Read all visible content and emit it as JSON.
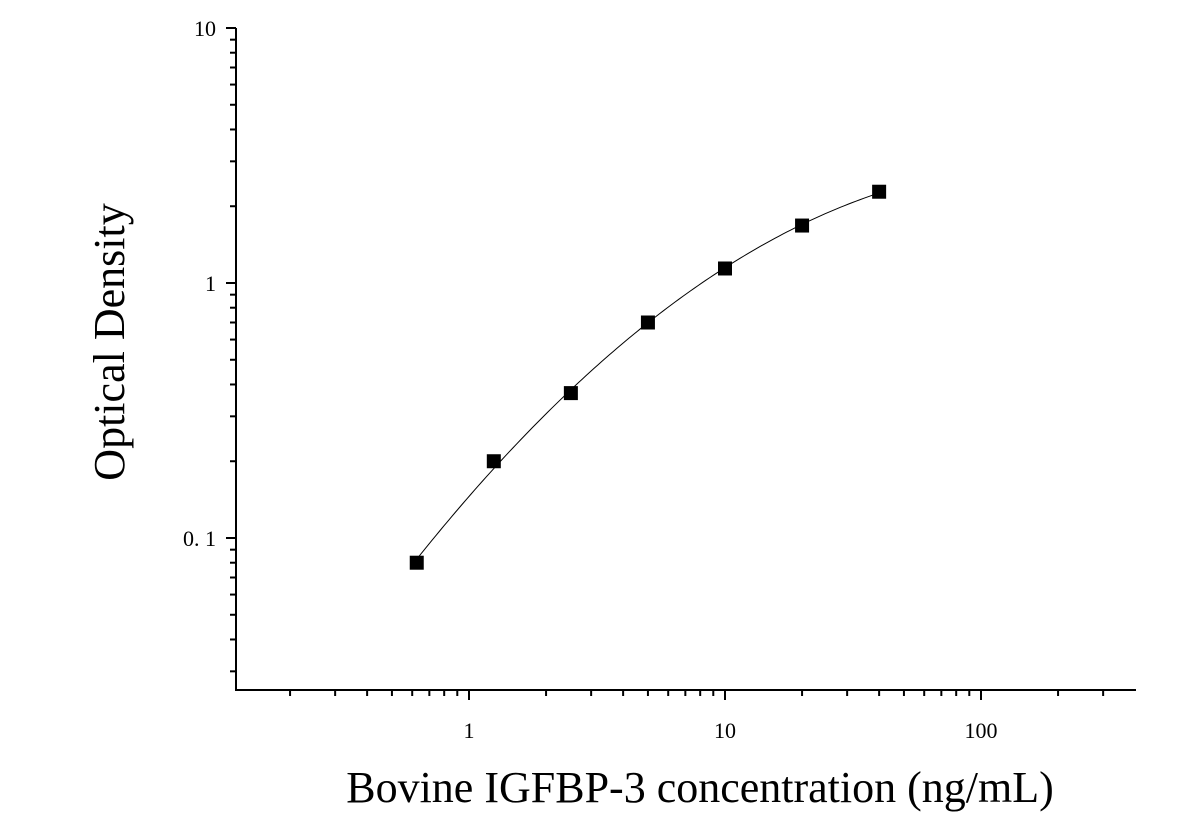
{
  "chart_data": {
    "type": "scatter",
    "title": "",
    "xlabel": "Bovine IGFBP-3 concentration (ng/mL)",
    "ylabel": "Optical Density",
    "x_scale": "log",
    "y_scale": "log",
    "xlim": [
      0.2,
      350
    ],
    "ylim": [
      0.026,
      10
    ],
    "x_ticks": [
      {
        "value": 1,
        "label": "1"
      },
      {
        "value": 10,
        "label": "10"
      },
      {
        "value": 100,
        "label": "100"
      }
    ],
    "y_ticks": [
      {
        "value": 10,
        "label": "10"
      },
      {
        "value": 1,
        "label": "1"
      },
      {
        "value": 0.1,
        "label": "0. 1"
      }
    ],
    "grid": false,
    "legend": "none",
    "series": [
      {
        "marker": "square",
        "color": "#000000",
        "x": [
          0.625,
          1.25,
          2.5,
          5,
          10,
          20,
          40
        ],
        "y": [
          0.08,
          0.2,
          0.37,
          0.7,
          1.14,
          1.68,
          2.28
        ]
      }
    ],
    "fit_curve": true
  }
}
